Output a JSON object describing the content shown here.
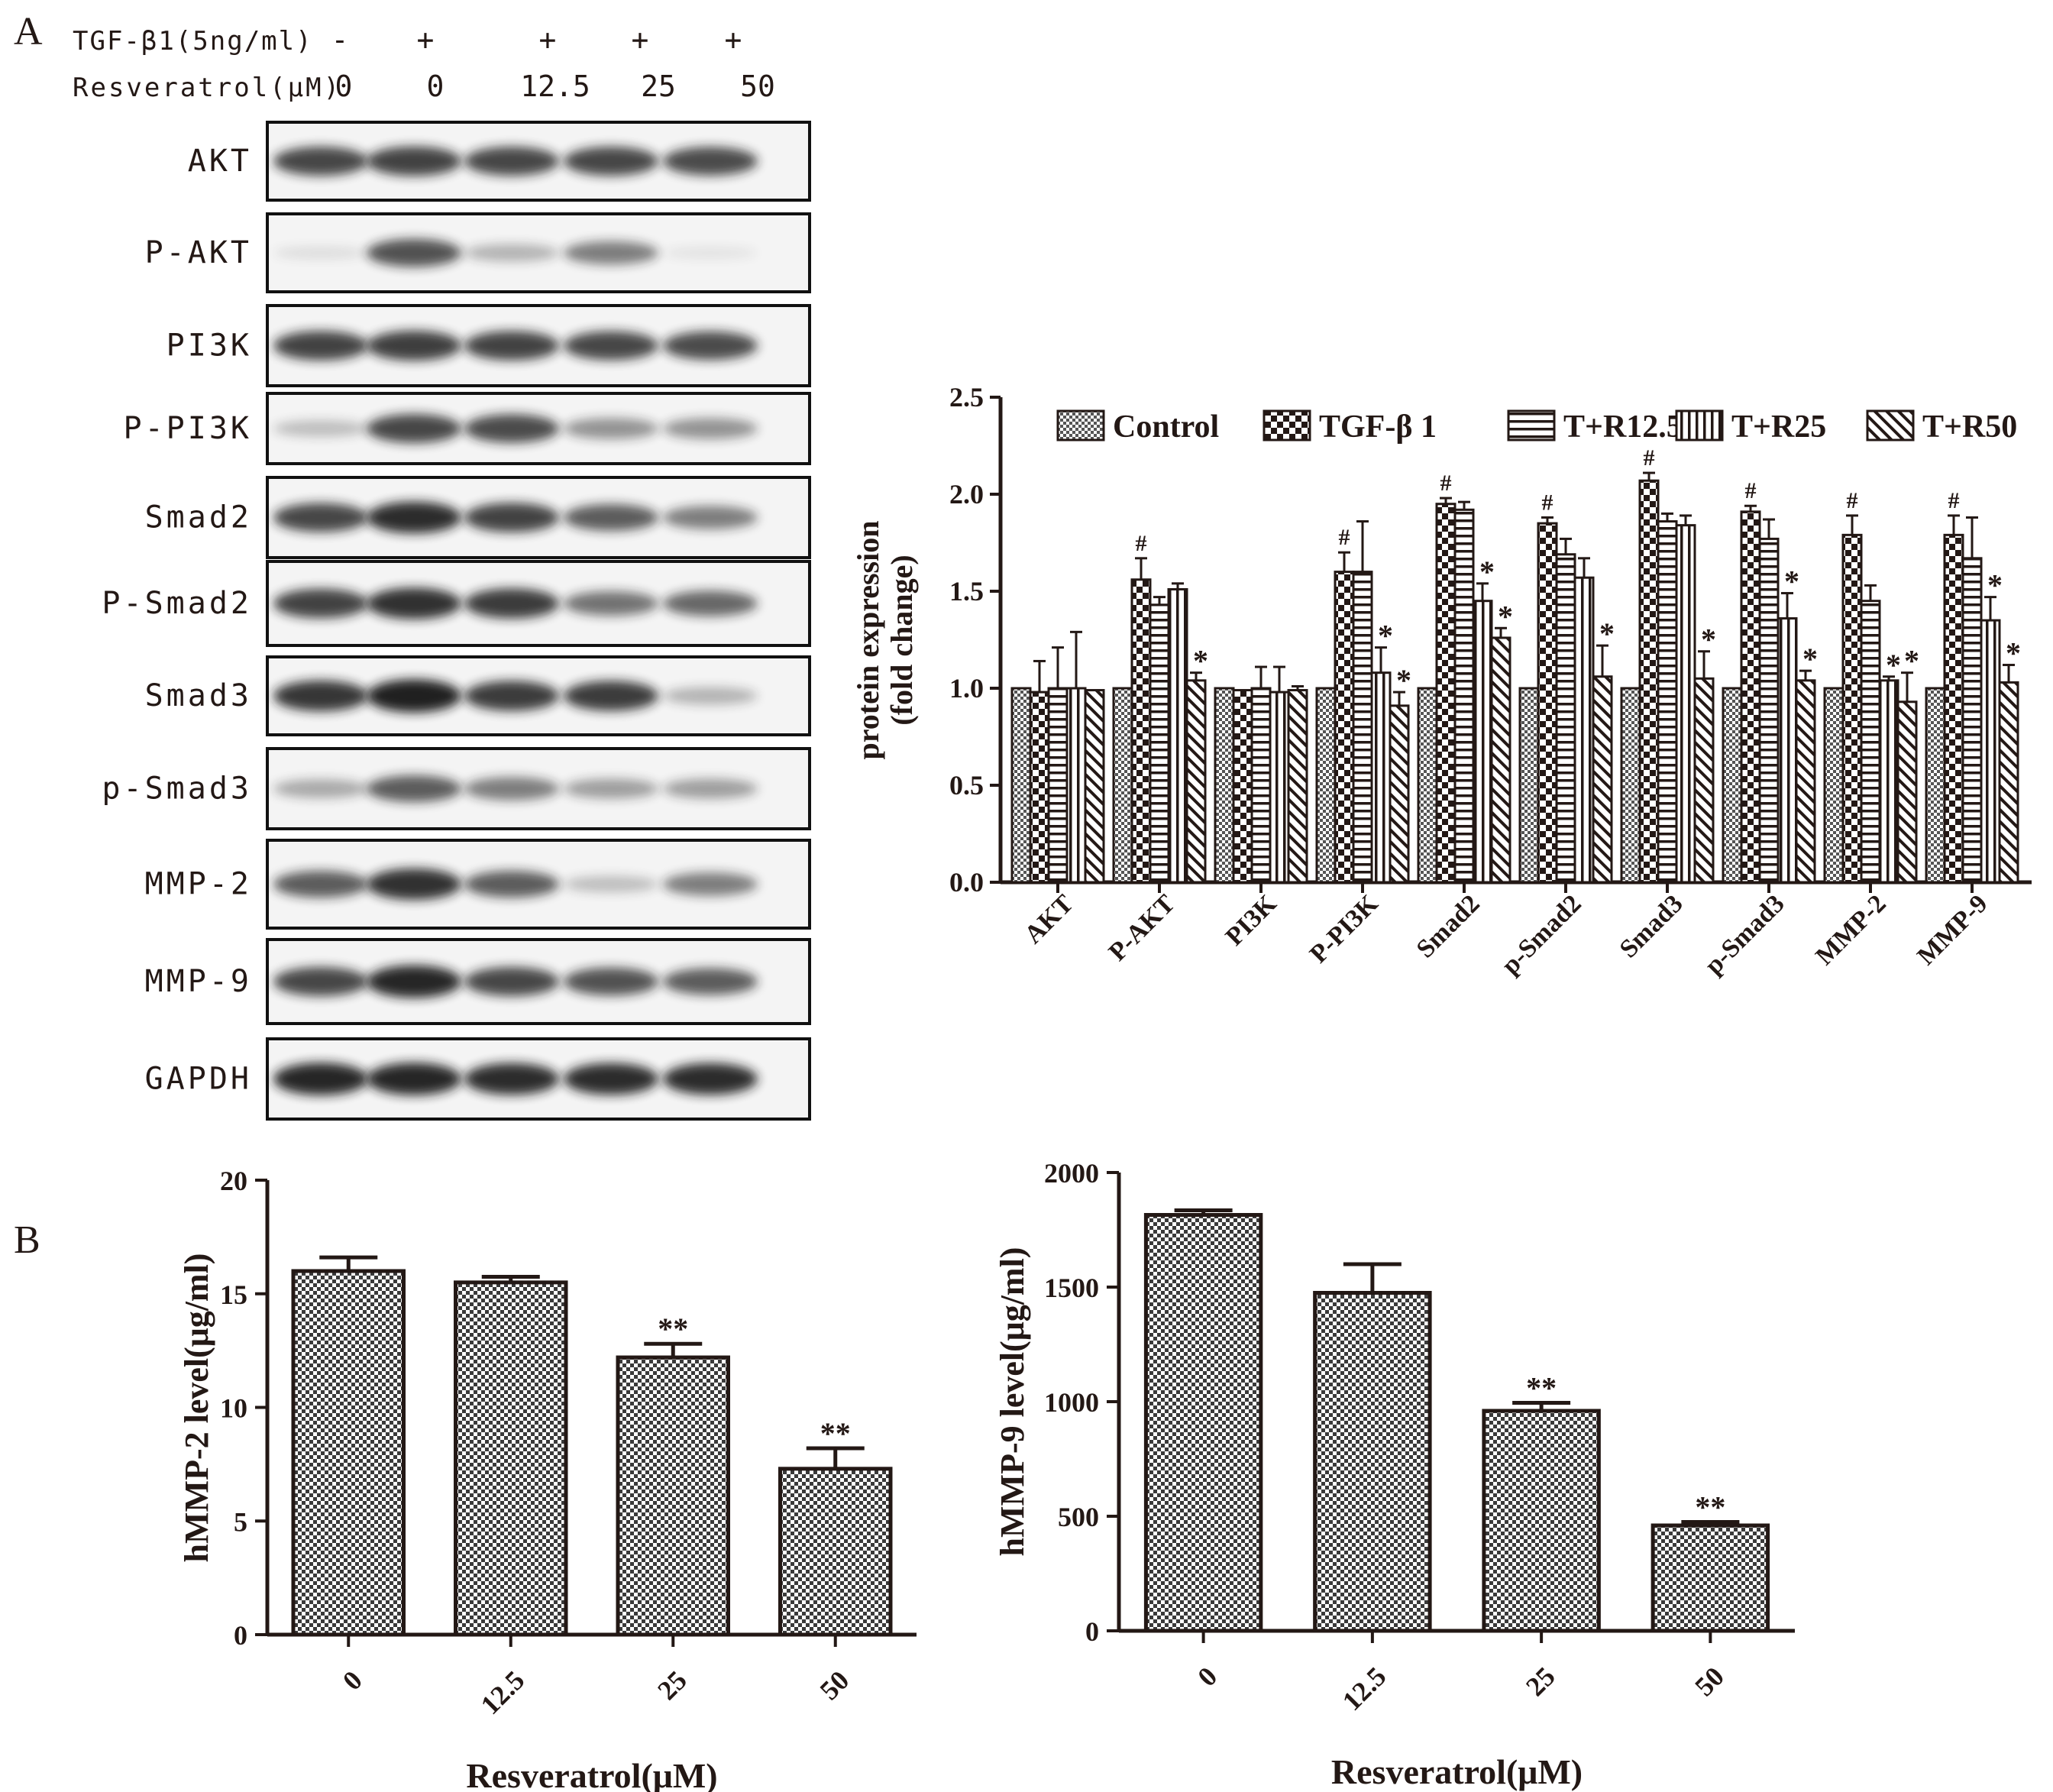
{
  "panel_a_letter": "A",
  "panel_b_letter": "B",
  "blot": {
    "treatments": [
      {
        "label": "TGF-β1(5ng/ml)",
        "values": [
          "-",
          "+",
          "+",
          "+",
          "+"
        ]
      },
      {
        "label": "Resveratrol(μM)",
        "values": [
          "0",
          "0",
          "12.5",
          "25",
          "50"
        ]
      }
    ],
    "rows": [
      {
        "label": "AKT",
        "intensity": [
          0.8,
          0.82,
          0.8,
          0.8,
          0.78
        ]
      },
      {
        "label": "P-AKT",
        "intensity": [
          0.1,
          0.75,
          0.3,
          0.55,
          0.08
        ]
      },
      {
        "label": "PI3K",
        "intensity": [
          0.82,
          0.84,
          0.82,
          0.8,
          0.78
        ]
      },
      {
        "label": "P-PI3K",
        "intensity": [
          0.25,
          0.8,
          0.78,
          0.45,
          0.45
        ]
      },
      {
        "label": "Smad2",
        "intensity": [
          0.8,
          0.92,
          0.82,
          0.7,
          0.55
        ]
      },
      {
        "label": "P-Smad2",
        "intensity": [
          0.82,
          0.9,
          0.85,
          0.6,
          0.65
        ]
      },
      {
        "label": "Smad3",
        "intensity": [
          0.88,
          0.98,
          0.85,
          0.85,
          0.3
        ]
      },
      {
        "label": "p-Smad3",
        "intensity": [
          0.35,
          0.7,
          0.55,
          0.4,
          0.4
        ]
      },
      {
        "label": "MMP-2",
        "intensity": [
          0.7,
          0.9,
          0.7,
          0.25,
          0.55
        ]
      },
      {
        "label": "MMP-9",
        "intensity": [
          0.8,
          0.95,
          0.8,
          0.75,
          0.7
        ]
      },
      {
        "label": "GAPDH",
        "intensity": [
          0.95,
          0.95,
          0.92,
          0.92,
          0.92
        ]
      }
    ]
  },
  "colors": {
    "ink": "#231815",
    "bar_face": "#ffffff",
    "band": "#1a1a1a"
  },
  "chart_data": [
    {
      "type": "bar",
      "ylabel": "protein expression\n(fold change)",
      "ylim": [
        0,
        2.5
      ],
      "yticks": [
        "0.0",
        "0.5",
        "1.0",
        "1.5",
        "2.0",
        "2.5"
      ],
      "categories": [
        "AKT",
        "P-AKT",
        "PI3K",
        "P-PI3K",
        "Smad2",
        "p-Smad2",
        "Smad3",
        "p-Smad3",
        "MMP-2",
        "MMP-9"
      ],
      "legend_position": "top",
      "series": [
        {
          "name": "Control",
          "pattern": "checker-fine",
          "values": [
            1.0,
            1.0,
            1.0,
            1.0,
            1.0,
            1.0,
            1.0,
            1.0,
            1.0,
            1.0
          ],
          "err": [
            0,
            0,
            0,
            0,
            0,
            0,
            0,
            0,
            0,
            0
          ],
          "marks": [
            "",
            "",
            "",
            "",
            "",
            "",
            "",
            "",
            "",
            ""
          ]
        },
        {
          "name": "TGF-β 1",
          "pattern": "checker-coarse",
          "values": [
            0.98,
            1.56,
            0.99,
            1.6,
            1.95,
            1.85,
            2.07,
            1.91,
            1.79,
            1.79
          ],
          "err": [
            0.16,
            0.11,
            0.0,
            0.1,
            0.03,
            0.03,
            0.04,
            0.03,
            0.1,
            0.1
          ],
          "marks": [
            "",
            "#",
            "",
            "#",
            "#",
            "#",
            "#",
            "#",
            "#",
            "#"
          ]
        },
        {
          "name": "T+R12.5",
          "pattern": "horizontal",
          "values": [
            1.0,
            1.43,
            1.0,
            1.6,
            1.92,
            1.69,
            1.86,
            1.77,
            1.45,
            1.67
          ],
          "err": [
            0.21,
            0.04,
            0.11,
            0.26,
            0.04,
            0.08,
            0.04,
            0.1,
            0.08,
            0.21
          ],
          "marks": [
            "",
            "",
            "",
            "",
            "",
            "",
            "",
            "",
            "",
            ""
          ]
        },
        {
          "name": "T+R25",
          "pattern": "vertical",
          "values": [
            1.0,
            1.51,
            0.98,
            1.08,
            1.45,
            1.57,
            1.84,
            1.36,
            1.04,
            1.35
          ],
          "err": [
            0.29,
            0.03,
            0.13,
            0.13,
            0.09,
            0.1,
            0.05,
            0.13,
            0.02,
            0.12
          ],
          "marks": [
            "",
            "",
            "",
            "*",
            "*",
            "",
            "",
            "*",
            "*",
            "*"
          ]
        },
        {
          "name": "T+R50",
          "pattern": "diagonal",
          "values": [
            0.99,
            1.04,
            0.99,
            0.91,
            1.26,
            1.06,
            1.05,
            1.04,
            0.93,
            1.03
          ],
          "err": [
            0.0,
            0.04,
            0.02,
            0.07,
            0.05,
            0.16,
            0.14,
            0.05,
            0.15,
            0.09
          ],
          "marks": [
            "",
            "*",
            "",
            "*",
            "*",
            "*",
            "*",
            "*",
            "*",
            "*"
          ]
        }
      ]
    },
    {
      "type": "bar",
      "xlabel": "Resveratrol(μM)",
      "ylabel": "hMMP-2 level(μg/ml)",
      "ylim": [
        0,
        20
      ],
      "yticks": [
        "0",
        "5",
        "10",
        "15",
        "20"
      ],
      "categories": [
        "0",
        "12.5",
        "25",
        "50"
      ],
      "values": [
        16.0,
        15.5,
        12.2,
        7.3
      ],
      "err": [
        0.6,
        0.25,
        0.6,
        0.9
      ],
      "marks": [
        "",
        "",
        "**",
        "**"
      ]
    },
    {
      "type": "bar",
      "xlabel": "Resveratrol(μM)",
      "ylabel": "hMMP-9 level(μg/ml)",
      "ylim": [
        0,
        2000
      ],
      "yticks": [
        "0",
        "500",
        "1000",
        "1500",
        "2000"
      ],
      "categories": [
        "0",
        "12.5",
        "25",
        "50"
      ],
      "values": [
        1815,
        1475,
        960,
        460
      ],
      "err": [
        20,
        125,
        35,
        15
      ],
      "marks": [
        "",
        "",
        "**",
        "**"
      ]
    }
  ]
}
